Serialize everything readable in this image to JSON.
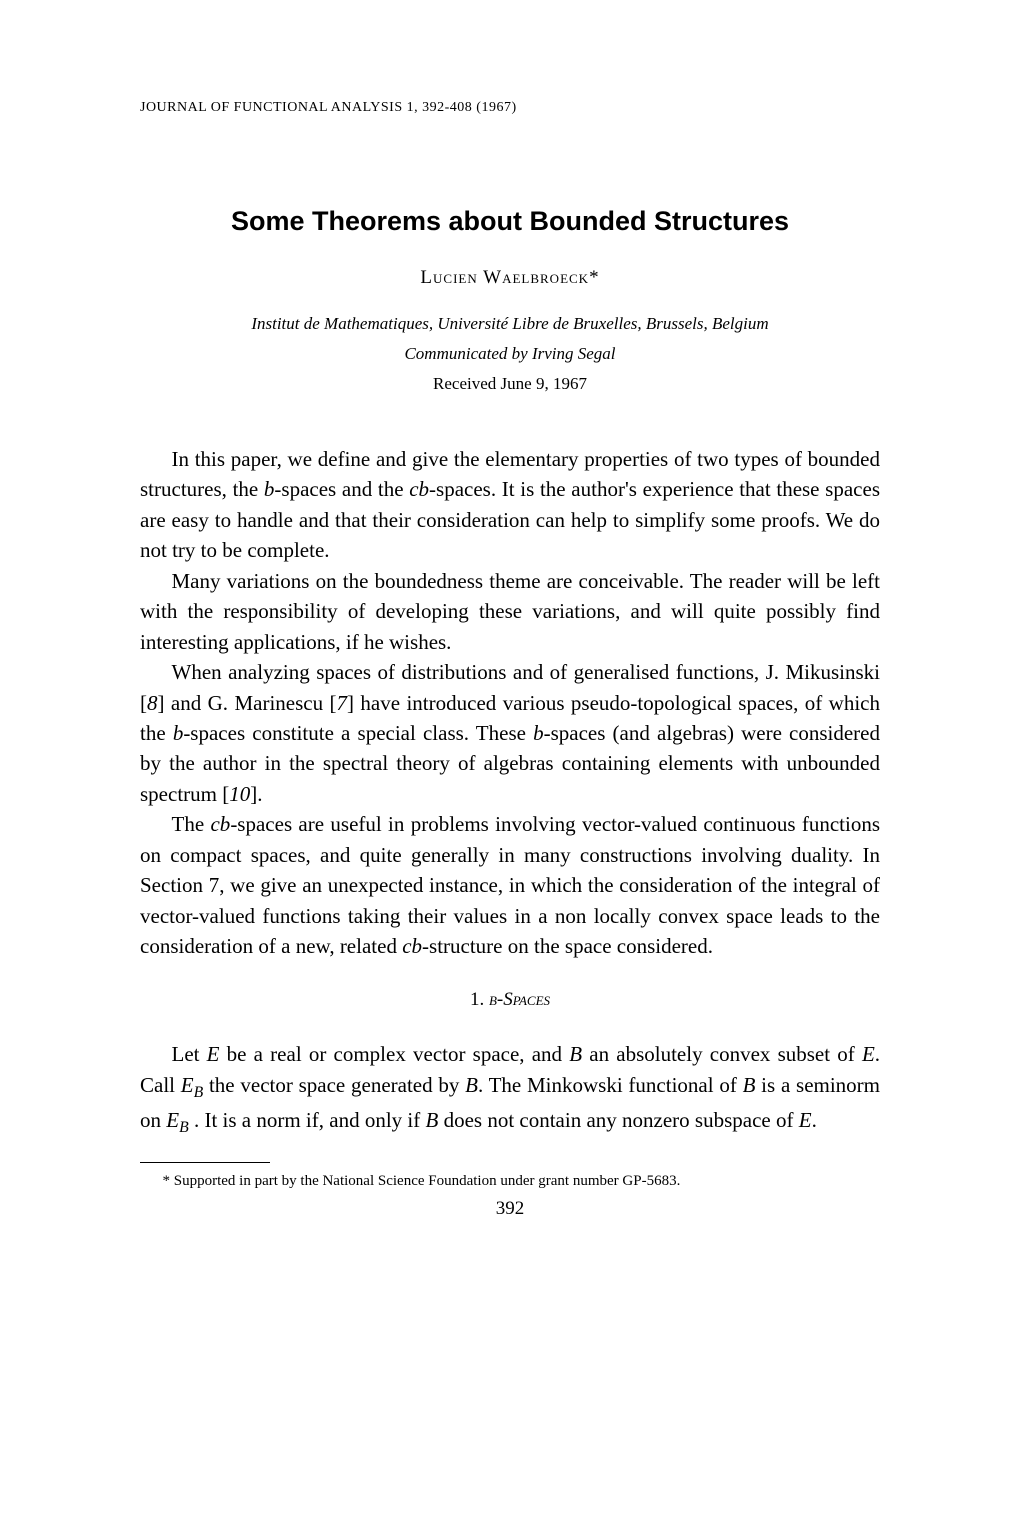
{
  "journal_header": "JOURNAL OF FUNCTIONAL ANALYSIS 1, 392-408 (1967)",
  "title": "Some Theorems about Bounded Structures",
  "author": "Lucien Waelbroeck*",
  "affiliation": "Institut de Mathematiques, Université Libre de Bruxelles, Brussels, Belgium",
  "communicated": "Communicated by Irving Segal",
  "received": "Received June 9, 1967",
  "paragraphs": {
    "p1_a": "In this paper, we define and give the elementary properties of two types of bounded structures, the ",
    "p1_b": "b",
    "p1_c": "-spaces and the ",
    "p1_d": "cb",
    "p1_e": "-spaces. It is the author's experience that these spaces are easy to handle and that their consideration can help to simplify some proofs. We do not try to be complete.",
    "p2": "Many variations on the boundedness theme are conceivable. The reader will be left with the responsibility of developing these variations, and will quite possibly find interesting applications, if he wishes.",
    "p3_a": "When analyzing spaces of distributions and of generalised functions, J. Mikusinski [",
    "p3_b": "8",
    "p3_c": "] and G. Marinescu [",
    "p3_d": "7",
    "p3_e": "] have introduced various pseudo-topological spaces, of which the ",
    "p3_f": "b",
    "p3_g": "-spaces constitute a special class. These ",
    "p3_h": "b",
    "p3_i": "-spaces (and algebras) were considered by the author in the spectral theory of algebras containing elements with unbounded spectrum [",
    "p3_j": "10",
    "p3_k": "].",
    "p4_a": "The ",
    "p4_b": "cb",
    "p4_c": "-spaces are useful in problems involving vector-valued continuous functions on compact spaces, and quite generally in many constructions involving duality. In Section 7, we give an unexpected instance, in which the consideration of the integral of vector-valued functions taking their values in a non locally convex space leads to the consideration of a new, related ",
    "p4_d": "cb",
    "p4_e": "-structure on the space considered."
  },
  "section": {
    "num": "1. ",
    "label": "b-Spaces"
  },
  "section_body": {
    "p5_a": "Let ",
    "p5_b": "E",
    "p5_c": " be a real or complex vector space, and ",
    "p5_d": "B",
    "p5_e": " an absolutely convex subset of ",
    "p5_f": "E",
    "p5_g": ". Call ",
    "p5_h": "E",
    "p5_hsub": "B",
    "p5_i": " the vector space generated by ",
    "p5_j": "B",
    "p5_k": ". The Minkowski functional of ",
    "p5_l": "B",
    "p5_m": " is a seminorm on ",
    "p5_n": "E",
    "p5_nsub": "B",
    "p5_o": " . It is a norm if, and only if ",
    "p5_p": "B",
    "p5_q": " does not contain any nonzero subspace of ",
    "p5_r": "E",
    "p5_s": "."
  },
  "footnote": "* Supported in part by the National Science Foundation under grant number GP-5683.",
  "page_number": "392",
  "colors": {
    "text": "#000000",
    "background": "#ffffff"
  },
  "typography": {
    "body_font": "Times New Roman",
    "title_font": "Arial",
    "body_size_pt": 16,
    "title_size_pt": 20
  }
}
